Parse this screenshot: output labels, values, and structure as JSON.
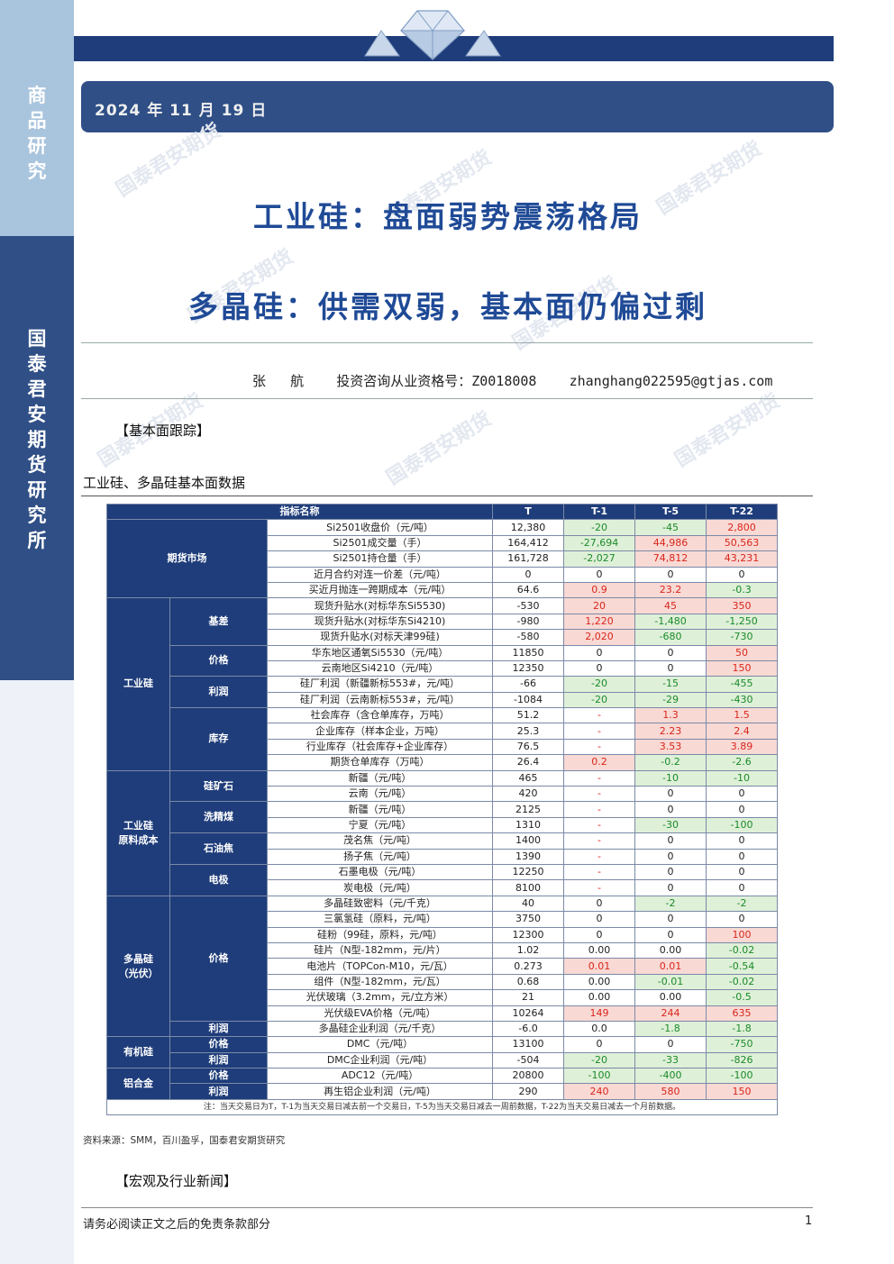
{
  "sidebar": {
    "top_text": [
      "商",
      "品",
      "研",
      "究"
    ],
    "bottom_text": [
      "国",
      "泰",
      "君",
      "安",
      "期",
      "货",
      "研",
      "究",
      "所"
    ]
  },
  "header": {
    "date": "2024 年 11 月 19 日"
  },
  "titles": {
    "line1": "工业硅：盘面弱势震荡格局",
    "line2": "多晶硅：供需双弱，基本面仍偏过剩"
  },
  "author": {
    "line": "张   航    投资咨询从业资格号：Z0018008    zhanghang022595@gtjas.com"
  },
  "section1": "【基本面跟踪】",
  "caption": "工业硅、多晶硅基本面数据",
  "table": {
    "headers": [
      "指标名称",
      "T",
      "T-1",
      "T-5",
      "T-22"
    ],
    "groups": {
      "futures": "期货市场",
      "si": "工业硅",
      "raw": "工业硅\n原料成本",
      "poly": "多晶硅\n（光伏）",
      "organic": "有机硅",
      "alu": "铝合金"
    },
    "subs": {
      "basis": "基差",
      "price": "价格",
      "profit": "利润",
      "stock": "库存",
      "ore": "硅矿石",
      "coal": "洗精煤",
      "coke": "石油焦",
      "electrode": "电极",
      "poly_price": "价格",
      "poly_profit": "利润",
      "org_price": "价格",
      "org_profit": "利润",
      "alu_price": "价格",
      "alu_profit": "利润"
    },
    "rows": [
      [
        "Si2501收盘价（元/吨）",
        "12,380",
        "-20",
        "-45",
        "2,800"
      ],
      [
        "Si2501成交量（手）",
        "164,412",
        "-27,694",
        "44,986",
        "50,563"
      ],
      [
        "Si2501持仓量（手）",
        "161,728",
        "-2,027",
        "74,812",
        "43,231"
      ],
      [
        "近月合约对连一价差（元/吨）",
        "0",
        "0",
        "0",
        "0"
      ],
      [
        "买近月抛连一跨期成本（元/吨）",
        "64.6",
        "0.9",
        "23.2",
        "-0.3"
      ],
      [
        "现货升贴水(对标华东Si5530)",
        "-530",
        "20",
        "45",
        "350"
      ],
      [
        "现货升贴水(对标华东Si4210)",
        "-980",
        "1,220",
        "-1,480",
        "-1,250"
      ],
      [
        "现货升贴水(对标天津99硅)",
        "-580",
        "2,020",
        "-680",
        "-730"
      ],
      [
        "华东地区通氧Si5530（元/吨）",
        "11850",
        "0",
        "0",
        "50"
      ],
      [
        "云南地区Si4210（元/吨）",
        "12350",
        "0",
        "0",
        "150"
      ],
      [
        "硅厂利润（新疆新标553#，元/吨）",
        "-66",
        "-20",
        "-15",
        "-455"
      ],
      [
        "硅厂利润（云南新标553#，元/吨）",
        "-1084",
        "-20",
        "-29",
        "-430"
      ],
      [
        "社会库存（含仓单库存，万吨）",
        "51.2",
        "-",
        "1.3",
        "1.5"
      ],
      [
        "企业库存（样本企业，万吨）",
        "25.3",
        "-",
        "2.23",
        "2.4"
      ],
      [
        "行业库存（社会库存+企业库存）",
        "76.5",
        "-",
        "3.53",
        "3.89"
      ],
      [
        "期货仓单库存（万吨）",
        "26.4",
        "0.2",
        "-0.2",
        "-2.6"
      ],
      [
        "新疆（元/吨）",
        "465",
        "-",
        "-10",
        "-10"
      ],
      [
        "云南（元/吨）",
        "420",
        "-",
        "0",
        "0"
      ],
      [
        "新疆（元/吨）",
        "2125",
        "-",
        "0",
        "0"
      ],
      [
        "宁夏（元/吨）",
        "1310",
        "-",
        "-30",
        "-100"
      ],
      [
        "茂名焦（元/吨）",
        "1400",
        "-",
        "0",
        "0"
      ],
      [
        "扬子焦（元/吨）",
        "1390",
        "-",
        "0",
        "0"
      ],
      [
        "石墨电极（元/吨）",
        "12250",
        "-",
        "0",
        "0"
      ],
      [
        "炭电极（元/吨）",
        "8100",
        "-",
        "0",
        "0"
      ],
      [
        "多晶硅致密料（元/千克）",
        "40",
        "0",
        "-2",
        "-2"
      ],
      [
        "三氯氢硅（原料，元/吨）",
        "3750",
        "0",
        "0",
        "0"
      ],
      [
        "硅粉（99硅，原料，元/吨）",
        "12300",
        "0",
        "0",
        "100"
      ],
      [
        "硅片（N型-182mm，元/片）",
        "1.02",
        "0.00",
        "0.00",
        "-0.02"
      ],
      [
        "电池片（TOPCon-M10，元/瓦）",
        "0.273",
        "0.01",
        "0.01",
        "-0.54"
      ],
      [
        "组件（N型-182mm，元/瓦）",
        "0.68",
        "0.00",
        "-0.01",
        "-0.02"
      ],
      [
        "光伏玻璃（3.2mm，元/立方米）",
        "21",
        "0.00",
        "0.00",
        "-0.5"
      ],
      [
        "光伏级EVA价格（元/吨）",
        "10264",
        "149",
        "244",
        "635"
      ],
      [
        "多晶硅企业利润（元/千克）",
        "-6.0",
        "0.0",
        "-1.8",
        "-1.8"
      ],
      [
        "DMC（元/吨）",
        "13100",
        "0",
        "0",
        "-750"
      ],
      [
        "DMC企业利润（元/吨）",
        "-504",
        "-20",
        "-33",
        "-826"
      ],
      [
        "ADC12（元/吨）",
        "20800",
        "-100",
        "-400",
        "-100"
      ],
      [
        "再生铝企业利润（元/吨）",
        "290",
        "240",
        "580",
        "150"
      ]
    ],
    "note": "注：当天交易日为T，T-1为当天交易日减去前一个交易日，T-5为当天交易日减去一周前数据，T-22为当天交易日减去一个月前数据。"
  },
  "source": "资料来源：SMM，百川盈孚，国泰君安期货研究",
  "section2": "【宏观及行业新闻】",
  "footer": {
    "disclaimer": "请务必阅读正文之后的免责条款部分",
    "page": "1"
  },
  "colors": {
    "navy": "#1f3d7a",
    "title_blue": "#1f4a96",
    "up_red": "#d8261c",
    "down_green": "#1a8a2a"
  }
}
